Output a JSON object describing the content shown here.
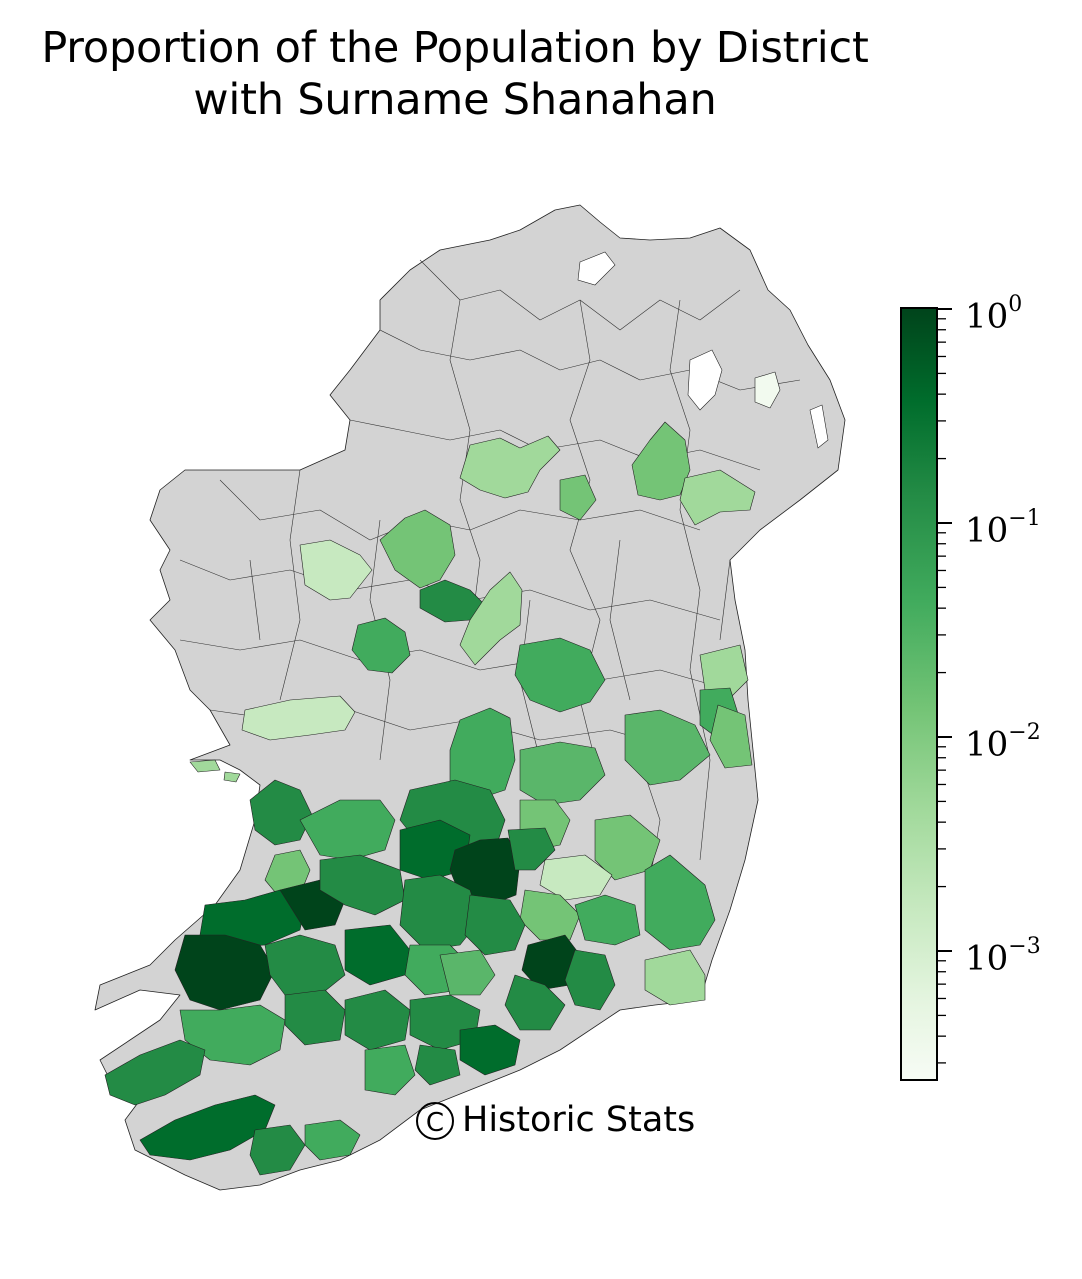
{
  "title_lines": [
    "Proportion of the Population by District",
    "with Surname Shanahan"
  ],
  "credit": {
    "symbol": "C",
    "text": "Historic Stats"
  },
  "colorbar": {
    "scale": "log",
    "range": [
      "10^-3.6",
      "10^0"
    ],
    "colormap": "Greens",
    "ticks": [
      {
        "base": "10",
        "exp": "0"
      },
      {
        "base": "10",
        "exp": "−1"
      },
      {
        "base": "10",
        "exp": "−2"
      },
      {
        "base": "10",
        "exp": "−3"
      }
    ]
  },
  "colors": {
    "no_data": "#d3d3d3",
    "very_dark": "#00441b",
    "dark": "#006d2c",
    "medium_dark": "#238b45",
    "medium": "#41ab5d",
    "light_medium": "#74c476",
    "light": "#a1d99b",
    "very_light": "#c7e9c0",
    "faint": "#f2faef"
  }
}
